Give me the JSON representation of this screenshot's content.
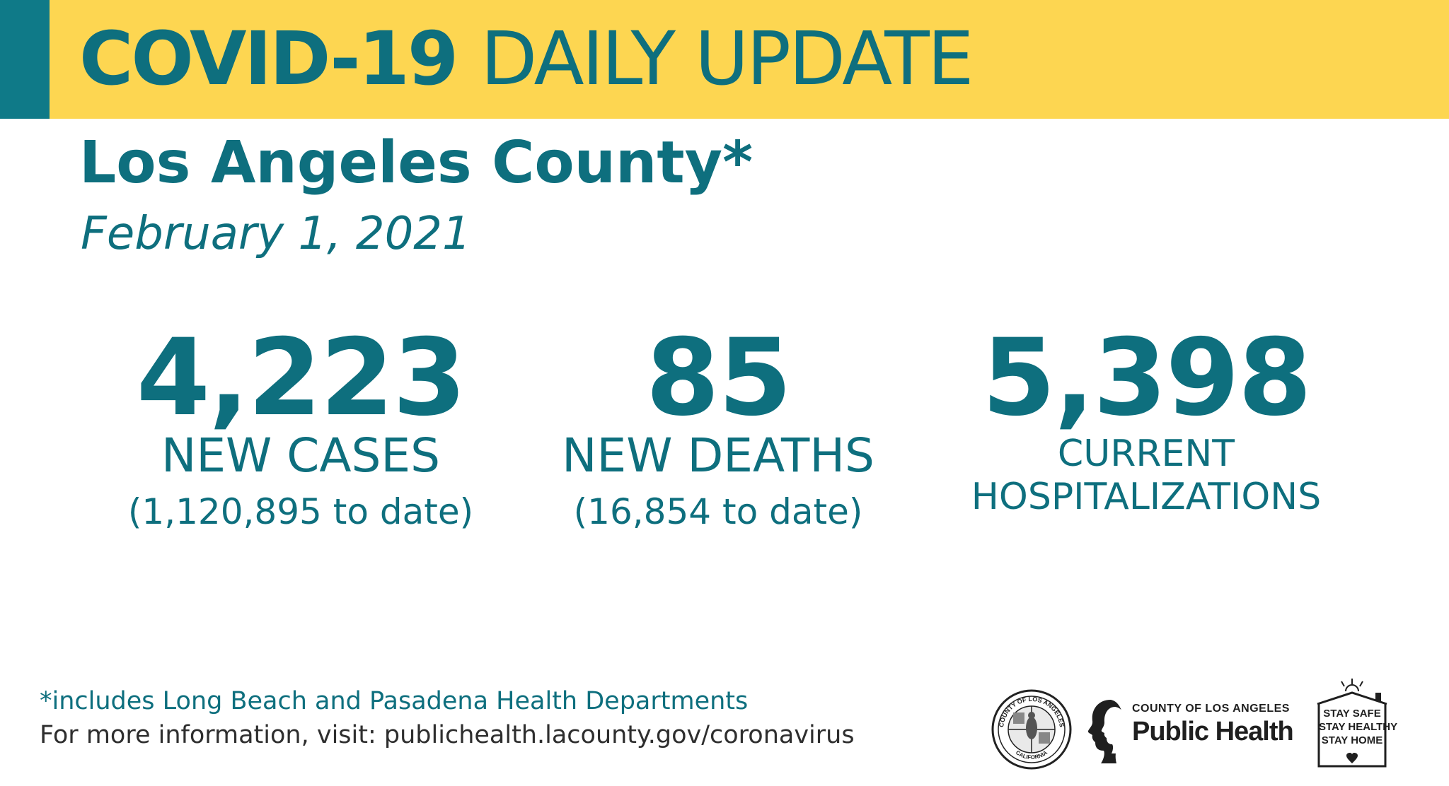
{
  "banner": {
    "title_strong": "COVID-19",
    "title_light": "DAILY UPDATE",
    "color_yellow": "#fdd651",
    "color_teal": "#0f7a88"
  },
  "heading": {
    "county": "Los Angeles County*",
    "date": "February 1, 2021"
  },
  "stats": {
    "cases": {
      "value": "4,223",
      "label": "NEW CASES",
      "to_date": "(1,120,895 to date)"
    },
    "deaths": {
      "value": "85",
      "label": "NEW DEATHS",
      "to_date": "(16,854 to date)"
    },
    "hospitalizations": {
      "value": "5,398",
      "label_line1": "CURRENT",
      "label_line2": "HOSPITALIZATIONS"
    }
  },
  "footer": {
    "footnote": "*includes Long Beach and Pasadena Health Departments",
    "more_info": "For more information, visit: publichealth.lacounty.gov/coronavirus"
  },
  "logos": {
    "seal": {
      "icon": "county-seal-icon",
      "text_top": "COUNTY OF LOS ANGELES",
      "text_bottom": "CALIFORNIA"
    },
    "public_health": {
      "icon": "public-health-heads-icon",
      "small": "COUNTY OF LOS ANGELES",
      "big": "Public Health"
    },
    "stay_safe": {
      "icon": "house-heart-icon",
      "line1": "STAY SAFE",
      "line2": "STAY HEALTHY",
      "line3": "STAY HOME"
    }
  }
}
